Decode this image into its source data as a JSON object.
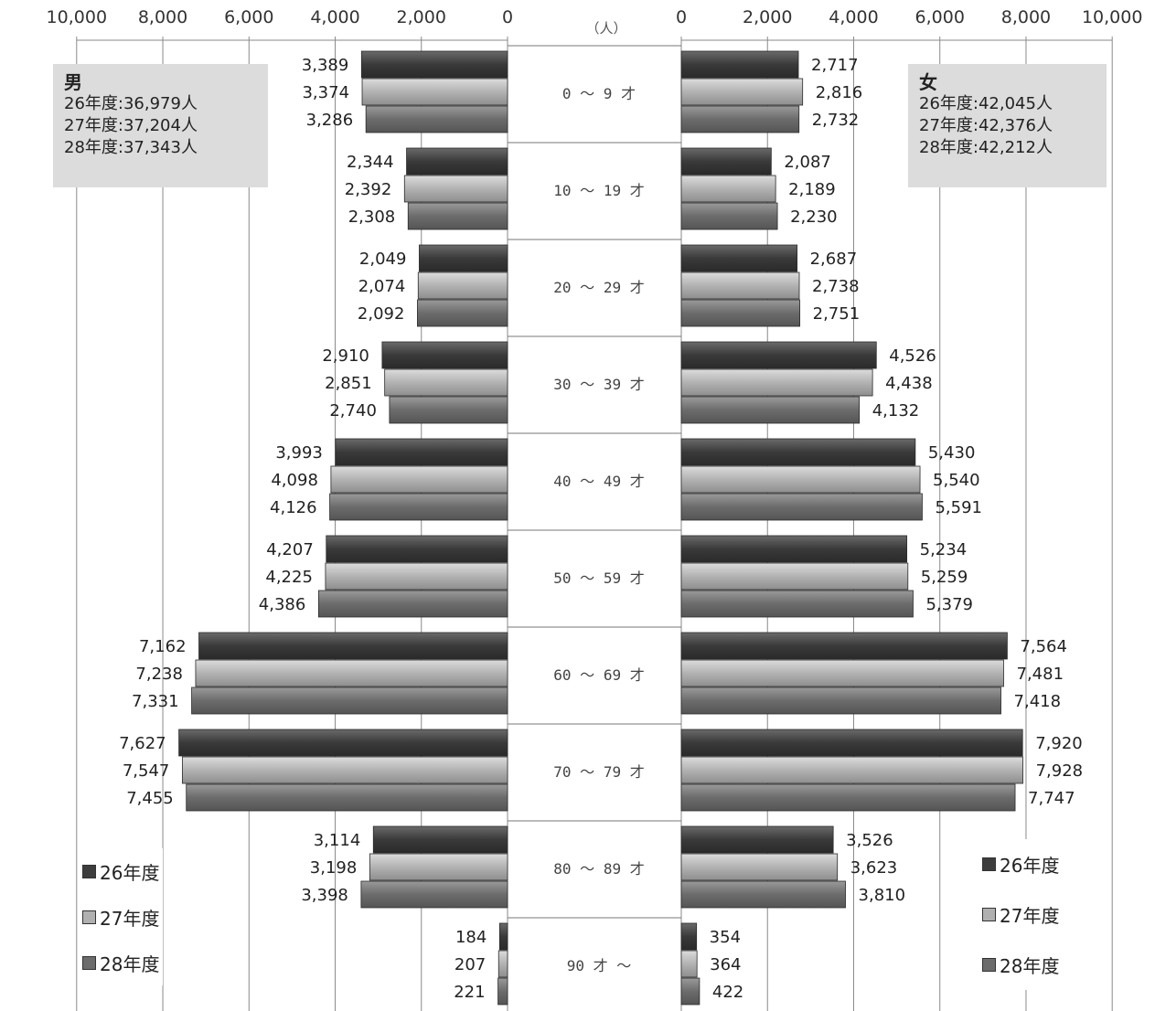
{
  "unit_label": "（人）",
  "left_box": {
    "title": "男",
    "lines": [
      "26年度:36,979人",
      "27年度:37,204人",
      "28年度:37,343人"
    ]
  },
  "right_box": {
    "title": "女",
    "lines": [
      "26年度:42,045人",
      "27年度:42,376人",
      "28年度:42,212人"
    ]
  },
  "legend_items": [
    "26年度",
    "27年度",
    "28年度"
  ],
  "colors": {
    "y26": "#3d3d3d",
    "y27": "#b0b0b0",
    "y28": "#6c6c6c"
  },
  "chart_data": {
    "type": "bar",
    "orientation": "horizontal-population-pyramid",
    "tick_labels": [
      "10,000",
      "8,000",
      "6,000",
      "4,000",
      "2,000",
      "0"
    ],
    "xlim": [
      0,
      10000
    ],
    "categories": [
      "0 ～ 9 才",
      "10 ～ 19 才",
      "20 ～ 29 才",
      "30 ～ 39 才",
      "40 ～ 49 才",
      "50 ～ 59 才",
      "60 ～ 69 才",
      "70 ～ 79 才",
      "80 ～ 89 才",
      "90 才 ～"
    ],
    "male": [
      {
        "name": "26年度",
        "values": [
          3389,
          2344,
          2049,
          2910,
          3993,
          4207,
          7162,
          7627,
          3114,
          184
        ]
      },
      {
        "name": "27年度",
        "values": [
          3374,
          2392,
          2074,
          2851,
          4098,
          4225,
          7238,
          7547,
          3198,
          207
        ]
      },
      {
        "name": "28年度",
        "values": [
          3286,
          2308,
          2092,
          2740,
          4126,
          4386,
          7331,
          7455,
          3398,
          221
        ]
      }
    ],
    "female": [
      {
        "name": "26年度",
        "values": [
          2717,
          2087,
          2687,
          4526,
          5430,
          5234,
          7564,
          7920,
          3526,
          354
        ]
      },
      {
        "name": "27年度",
        "values": [
          2816,
          2189,
          2738,
          4438,
          5540,
          5259,
          7481,
          7928,
          3623,
          364
        ]
      },
      {
        "name": "28年度",
        "values": [
          2732,
          2230,
          2751,
          4132,
          5591,
          5379,
          7418,
          7747,
          3810,
          422
        ]
      }
    ],
    "grid": true
  }
}
